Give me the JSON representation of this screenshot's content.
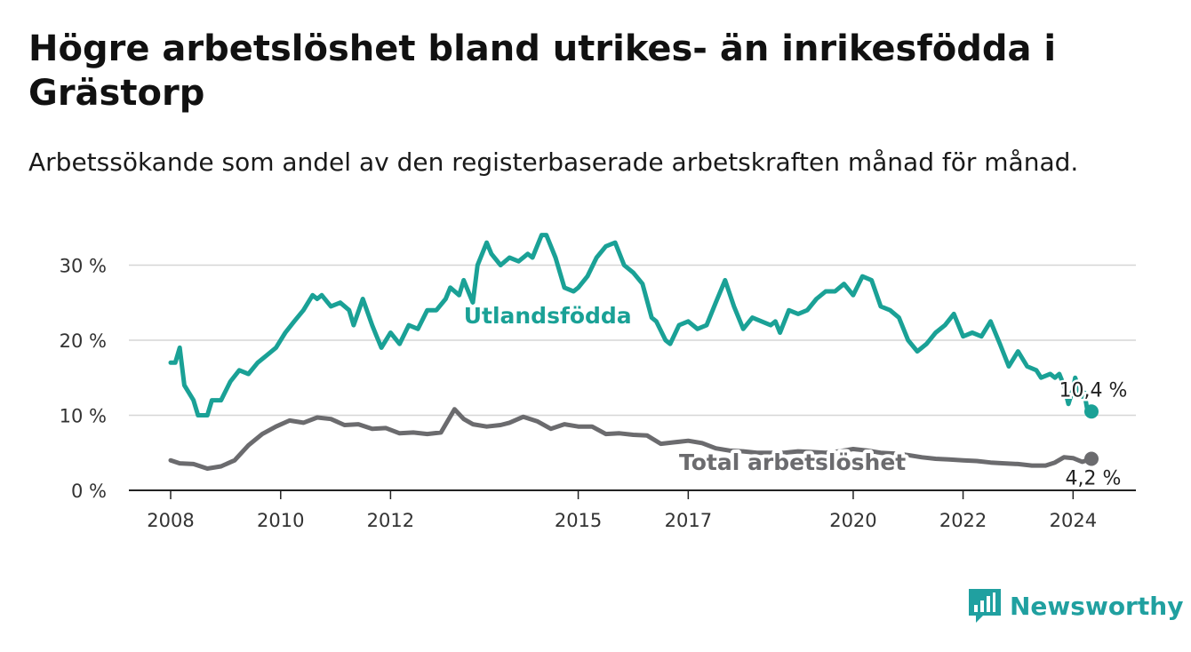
{
  "header": {
    "title": "Högre arbetslöshet bland utrikes- än inrikesfödda i Grästorp",
    "subtitle": "Arbetssökande som andel av den registerbaserade arbetskraften månad för månad."
  },
  "brand": {
    "name": "Newsworthy",
    "icon": "bar-chart-logo-icon",
    "color": "#20a0a0"
  },
  "chart_data": {
    "type": "line",
    "xlim": [
      "2008-01-01",
      "2024-10-01"
    ],
    "ylim": [
      0,
      31
    ],
    "grid": true,
    "x_ticks": [
      {
        "date": "2008-01-01",
        "label": "2008"
      },
      {
        "date": "2010-01-01",
        "label": "2010"
      },
      {
        "date": "2012-01-01",
        "label": "2012"
      },
      {
        "date": "2015-06-01",
        "label": "2015"
      },
      {
        "date": "2017-06-01",
        "label": "2017"
      },
      {
        "date": "2020-06-01",
        "label": "2020"
      },
      {
        "date": "2022-06-01",
        "label": "2022"
      },
      {
        "date": "2024-06-01",
        "label": "2024"
      }
    ],
    "y_ticks": [
      {
        "value": 0,
        "label": "0 %"
      },
      {
        "value": 10,
        "label": "10 %"
      },
      {
        "value": 20,
        "label": "20 %"
      },
      {
        "value": 30,
        "label": "30 %"
      }
    ],
    "series": [
      {
        "name": "Utlandsfödda",
        "color": "#1aa196",
        "end_label": "10,4 %",
        "points": [
          [
            "2008-01-01",
            17.0
          ],
          [
            "2008-02-01",
            17.0
          ],
          [
            "2008-03-01",
            19.0
          ],
          [
            "2008-04-01",
            14.0
          ],
          [
            "2008-06-01",
            12.0
          ],
          [
            "2008-07-01",
            10.0
          ],
          [
            "2008-09-01",
            10.0
          ],
          [
            "2008-10-01",
            12.0
          ],
          [
            "2008-12-01",
            12.0
          ],
          [
            "2009-02-01",
            14.5
          ],
          [
            "2009-04-01",
            16.0
          ],
          [
            "2009-06-01",
            15.5
          ],
          [
            "2009-08-01",
            17.0
          ],
          [
            "2009-10-01",
            18.0
          ],
          [
            "2009-12-01",
            19.0
          ],
          [
            "2010-02-01",
            21.0
          ],
          [
            "2010-04-01",
            22.5
          ],
          [
            "2010-06-01",
            24.0
          ],
          [
            "2010-08-01",
            26.0
          ],
          [
            "2010-09-01",
            25.5
          ],
          [
            "2010-10-01",
            26.0
          ],
          [
            "2010-12-01",
            24.5
          ],
          [
            "2011-02-01",
            25.0
          ],
          [
            "2011-04-01",
            24.0
          ],
          [
            "2011-05-01",
            22.0
          ],
          [
            "2011-07-01",
            25.5
          ],
          [
            "2011-09-01",
            22.0
          ],
          [
            "2011-10-01",
            20.5
          ],
          [
            "2011-11-01",
            19.0
          ],
          [
            "2012-01-01",
            21.0
          ],
          [
            "2012-03-01",
            19.5
          ],
          [
            "2012-05-01",
            22.0
          ],
          [
            "2012-07-01",
            21.5
          ],
          [
            "2012-09-01",
            24.0
          ],
          [
            "2012-11-01",
            24.0
          ],
          [
            "2013-01-01",
            25.5
          ],
          [
            "2013-02-01",
            27.0
          ],
          [
            "2013-04-01",
            26.0
          ],
          [
            "2013-05-01",
            28.0
          ],
          [
            "2013-07-01",
            25.0
          ],
          [
            "2013-08-01",
            30.0
          ],
          [
            "2013-10-01",
            33.0
          ],
          [
            "2013-11-01",
            31.5
          ],
          [
            "2014-01-01",
            30.0
          ],
          [
            "2014-03-01",
            31.0
          ],
          [
            "2014-05-01",
            30.5
          ],
          [
            "2014-07-01",
            31.5
          ],
          [
            "2014-08-01",
            31.0
          ],
          [
            "2014-10-01",
            34.0
          ],
          [
            "2014-11-01",
            34.0
          ],
          [
            "2015-01-01",
            31.0
          ],
          [
            "2015-03-01",
            27.0
          ],
          [
            "2015-05-01",
            26.5
          ],
          [
            "2015-06-01",
            27.0
          ],
          [
            "2015-08-01",
            28.5
          ],
          [
            "2015-10-01",
            31.0
          ],
          [
            "2015-12-01",
            32.5
          ],
          [
            "2016-02-01",
            33.0
          ],
          [
            "2016-04-01",
            30.0
          ],
          [
            "2016-06-01",
            29.0
          ],
          [
            "2016-08-01",
            27.5
          ],
          [
            "2016-10-01",
            23.0
          ],
          [
            "2016-11-01",
            22.5
          ],
          [
            "2017-01-01",
            20.0
          ],
          [
            "2017-02-01",
            19.5
          ],
          [
            "2017-04-01",
            22.0
          ],
          [
            "2017-06-01",
            22.5
          ],
          [
            "2017-08-01",
            21.5
          ],
          [
            "2017-10-01",
            22.0
          ],
          [
            "2017-12-01",
            25.0
          ],
          [
            "2018-02-01",
            28.0
          ],
          [
            "2018-04-01",
            24.5
          ],
          [
            "2018-06-01",
            21.5
          ],
          [
            "2018-08-01",
            23.0
          ],
          [
            "2018-10-01",
            22.5
          ],
          [
            "2018-12-01",
            22.0
          ],
          [
            "2019-01-01",
            22.5
          ],
          [
            "2019-02-01",
            21.0
          ],
          [
            "2019-04-01",
            24.0
          ],
          [
            "2019-06-01",
            23.5
          ],
          [
            "2019-08-01",
            24.0
          ],
          [
            "2019-10-01",
            25.5
          ],
          [
            "2019-12-01",
            26.5
          ],
          [
            "2020-02-01",
            26.5
          ],
          [
            "2020-04-01",
            27.5
          ],
          [
            "2020-06-01",
            26.0
          ],
          [
            "2020-08-01",
            28.5
          ],
          [
            "2020-10-01",
            28.0
          ],
          [
            "2020-12-01",
            24.5
          ],
          [
            "2021-02-01",
            24.0
          ],
          [
            "2021-04-01",
            23.0
          ],
          [
            "2021-06-01",
            20.0
          ],
          [
            "2021-08-01",
            18.5
          ],
          [
            "2021-10-01",
            19.5
          ],
          [
            "2021-12-01",
            21.0
          ],
          [
            "2022-02-01",
            22.0
          ],
          [
            "2022-04-01",
            23.5
          ],
          [
            "2022-06-01",
            20.5
          ],
          [
            "2022-08-01",
            21.0
          ],
          [
            "2022-10-01",
            20.5
          ],
          [
            "2022-12-01",
            22.5
          ],
          [
            "2023-02-01",
            19.5
          ],
          [
            "2023-04-01",
            16.5
          ],
          [
            "2023-06-01",
            18.5
          ],
          [
            "2023-08-01",
            16.5
          ],
          [
            "2023-10-01",
            16.0
          ],
          [
            "2023-11-01",
            15.0
          ],
          [
            "2024-01-01",
            15.5
          ],
          [
            "2024-02-01",
            15.0
          ],
          [
            "2024-03-01",
            15.5
          ],
          [
            "2024-04-01",
            14.0
          ],
          [
            "2024-05-01",
            11.5
          ],
          [
            "2024-06-01",
            13.5
          ],
          [
            "2024-06-15",
            15.0
          ],
          [
            "2024-07-01",
            14.0
          ],
          [
            "2024-07-15",
            13.0
          ],
          [
            "2024-08-01",
            12.5
          ],
          [
            "2024-08-15",
            13.0
          ],
          [
            "2024-09-01",
            11.0
          ],
          [
            "2024-09-15",
            11.0
          ],
          [
            "2024-10-01",
            10.5
          ]
        ]
      },
      {
        "name": "Total arbetslöshet",
        "color": "#6b6b6e",
        "end_label": "4,2 %",
        "points": [
          [
            "2008-01-01",
            4.0
          ],
          [
            "2008-03-01",
            3.6
          ],
          [
            "2008-06-01",
            3.5
          ],
          [
            "2008-09-01",
            2.9
          ],
          [
            "2008-12-01",
            3.2
          ],
          [
            "2009-03-01",
            4.0
          ],
          [
            "2009-06-01",
            6.0
          ],
          [
            "2009-09-01",
            7.5
          ],
          [
            "2009-12-01",
            8.5
          ],
          [
            "2010-03-01",
            9.3
          ],
          [
            "2010-06-01",
            9.0
          ],
          [
            "2010-09-01",
            9.7
          ],
          [
            "2010-12-01",
            9.5
          ],
          [
            "2011-03-01",
            8.7
          ],
          [
            "2011-06-01",
            8.8
          ],
          [
            "2011-09-01",
            8.2
          ],
          [
            "2011-12-01",
            8.3
          ],
          [
            "2012-03-01",
            7.6
          ],
          [
            "2012-06-01",
            7.7
          ],
          [
            "2012-09-01",
            7.5
          ],
          [
            "2012-12-01",
            7.7
          ],
          [
            "2013-03-01",
            10.8
          ],
          [
            "2013-05-01",
            9.5
          ],
          [
            "2013-07-01",
            8.8
          ],
          [
            "2013-10-01",
            8.5
          ],
          [
            "2014-01-01",
            8.7
          ],
          [
            "2014-03-01",
            9.0
          ],
          [
            "2014-06-01",
            9.8
          ],
          [
            "2014-09-01",
            9.2
          ],
          [
            "2014-12-01",
            8.2
          ],
          [
            "2015-03-01",
            8.8
          ],
          [
            "2015-06-01",
            8.5
          ],
          [
            "2015-09-01",
            8.5
          ],
          [
            "2015-12-01",
            7.5
          ],
          [
            "2016-03-01",
            7.6
          ],
          [
            "2016-06-01",
            7.4
          ],
          [
            "2016-09-01",
            7.3
          ],
          [
            "2016-12-01",
            6.2
          ],
          [
            "2017-03-01",
            6.4
          ],
          [
            "2017-06-01",
            6.6
          ],
          [
            "2017-09-01",
            6.3
          ],
          [
            "2017-12-01",
            5.6
          ],
          [
            "2018-03-01",
            5.3
          ],
          [
            "2018-06-01",
            5.2
          ],
          [
            "2018-09-01",
            5.0
          ],
          [
            "2018-12-01",
            5.0
          ],
          [
            "2019-03-01",
            5.0
          ],
          [
            "2019-06-01",
            5.2
          ],
          [
            "2019-09-01",
            5.1
          ],
          [
            "2019-12-01",
            5.0
          ],
          [
            "2020-03-01",
            5.2
          ],
          [
            "2020-06-01",
            5.5
          ],
          [
            "2020-09-01",
            5.3
          ],
          [
            "2020-12-01",
            5.0
          ],
          [
            "2021-03-01",
            4.9
          ],
          [
            "2021-06-01",
            4.7
          ],
          [
            "2021-09-01",
            4.4
          ],
          [
            "2021-12-01",
            4.2
          ],
          [
            "2022-03-01",
            4.1
          ],
          [
            "2022-06-01",
            4.0
          ],
          [
            "2022-09-01",
            3.9
          ],
          [
            "2022-12-01",
            3.7
          ],
          [
            "2023-03-01",
            3.6
          ],
          [
            "2023-06-01",
            3.5
          ],
          [
            "2023-09-01",
            3.3
          ],
          [
            "2023-12-01",
            3.3
          ],
          [
            "2024-02-01",
            3.7
          ],
          [
            "2024-04-01",
            4.4
          ],
          [
            "2024-06-01",
            4.3
          ],
          [
            "2024-08-01",
            3.8
          ],
          [
            "2024-10-01",
            4.2
          ]
        ]
      }
    ]
  }
}
